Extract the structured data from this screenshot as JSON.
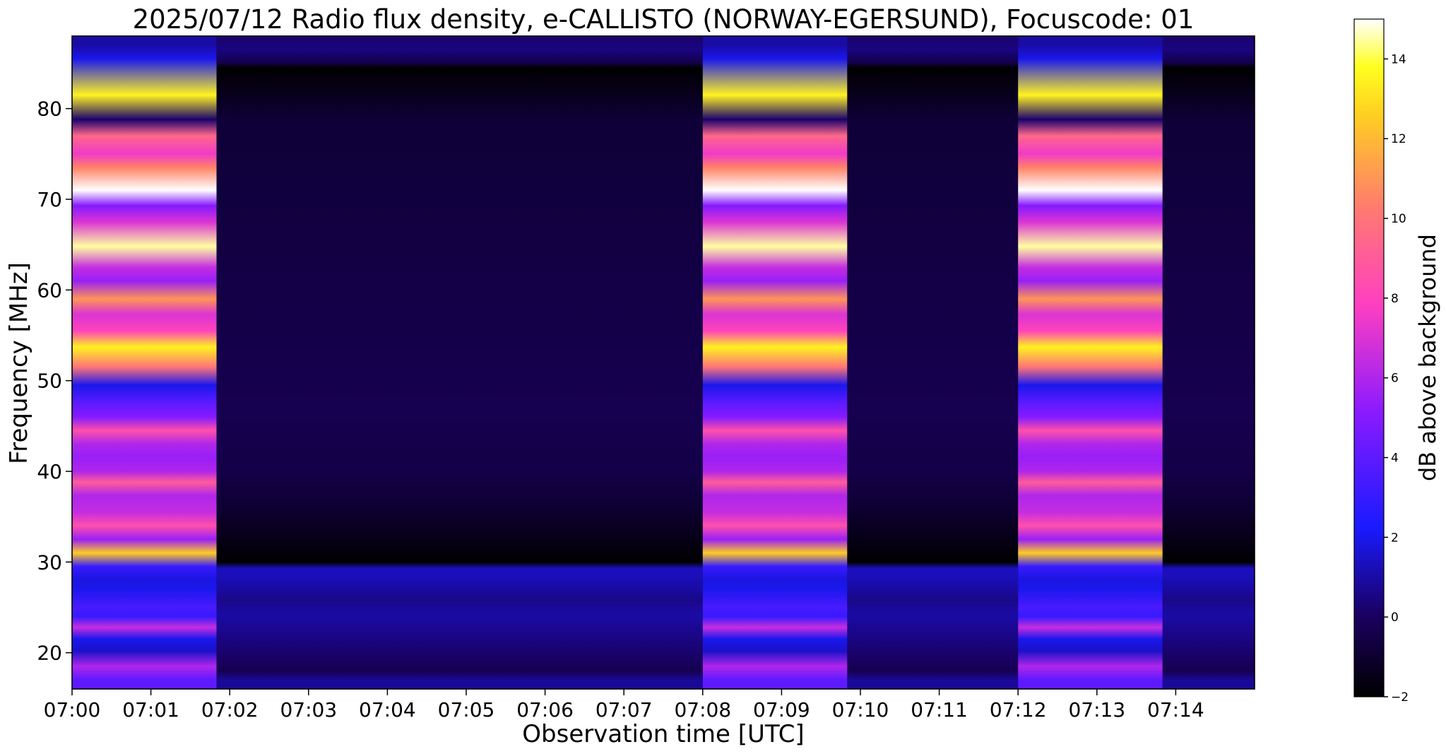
{
  "chart_data": {
    "type": "heatmap",
    "title": "2025/07/12  Radio flux density, e-CALLISTO (NORWAY-EGERSUND), Focuscode: 01",
    "xlabel": "Observation time [UTC]",
    "ylabel": "Frequency [MHz]",
    "colorbar_label": "dB above background",
    "colormap": "gnuplot2",
    "xlim": [
      "07:00",
      "07:15"
    ],
    "ylim": [
      16,
      88
    ],
    "clim": [
      -2,
      15
    ],
    "x_ticks": [
      "07:00",
      "07:01",
      "07:02",
      "07:03",
      "07:04",
      "07:05",
      "07:06",
      "07:07",
      "07:08",
      "07:09",
      "07:10",
      "07:11",
      "07:12",
      "07:13",
      "07:14"
    ],
    "y_ticks": [
      "20",
      "30",
      "40",
      "50",
      "60",
      "70",
      "80"
    ],
    "colorbar_ticks": [
      "−2",
      "0",
      "2",
      "4",
      "6",
      "8",
      "10",
      "12",
      "14"
    ],
    "calibration_segments": [
      {
        "start": "07:00:00",
        "end": "07:01:50",
        "state": "calibration"
      },
      {
        "start": "07:01:50",
        "end": "07:08:00",
        "state": "background"
      },
      {
        "start": "07:08:00",
        "end": "07:09:50",
        "state": "calibration"
      },
      {
        "start": "07:09:50",
        "end": "07:12:00",
        "state": "background"
      },
      {
        "start": "07:12:00",
        "end": "07:13:50",
        "state": "calibration"
      },
      {
        "start": "07:13:50",
        "end": "07:15:00",
        "state": "background"
      }
    ],
    "calibration_bands": [
      {
        "freq": 87.0,
        "db": 1.0
      },
      {
        "freq": 85.5,
        "db": 2.0
      },
      {
        "freq": 81.5,
        "db": 13.5
      },
      {
        "freq": 78.8,
        "db": 0.2
      },
      {
        "freq": 77.0,
        "db": 9.5
      },
      {
        "freq": 75.0,
        "db": 7.5
      },
      {
        "freq": 73.5,
        "db": 10.5
      },
      {
        "freq": 71.0,
        "db": 15.0
      },
      {
        "freq": 69.3,
        "db": 5.0
      },
      {
        "freq": 67.5,
        "db": 7.0
      },
      {
        "freq": 64.8,
        "db": 14.5
      },
      {
        "freq": 62.5,
        "db": 6.5
      },
      {
        "freq": 61.0,
        "db": 5.5
      },
      {
        "freq": 59.0,
        "db": 11.0
      },
      {
        "freq": 57.3,
        "db": 7.0
      },
      {
        "freq": 55.5,
        "db": 8.0
      },
      {
        "freq": 53.7,
        "db": 13.5
      },
      {
        "freq": 51.5,
        "db": 10.0
      },
      {
        "freq": 49.5,
        "db": 2.0
      },
      {
        "freq": 47.5,
        "db": 4.0
      },
      {
        "freq": 46.0,
        "db": 5.0
      },
      {
        "freq": 44.5,
        "db": 8.5
      },
      {
        "freq": 43.0,
        "db": 6.0
      },
      {
        "freq": 41.5,
        "db": 5.5
      },
      {
        "freq": 40.0,
        "db": 6.0
      },
      {
        "freq": 38.8,
        "db": 9.0
      },
      {
        "freq": 37.3,
        "db": 6.0
      },
      {
        "freq": 35.5,
        "db": 6.5
      },
      {
        "freq": 34.0,
        "db": 8.5
      },
      {
        "freq": 32.5,
        "db": 5.5
      },
      {
        "freq": 31.0,
        "db": 12.5
      },
      {
        "freq": 29.5,
        "db": 3.0
      },
      {
        "freq": 28.0,
        "db": 1.8
      },
      {
        "freq": 27.0,
        "db": 2.0
      },
      {
        "freq": 25.0,
        "db": 3.5
      },
      {
        "freq": 24.0,
        "db": 3.0
      },
      {
        "freq": 22.8,
        "db": 6.5
      },
      {
        "freq": 21.5,
        "db": 2.0
      },
      {
        "freq": 20.2,
        "db": 1.5
      },
      {
        "freq": 18.5,
        "db": 6.0
      },
      {
        "freq": 17.0,
        "db": 4.0
      }
    ],
    "background_bands": [
      {
        "freq": 86.5,
        "db": 0.5
      },
      {
        "freq": 78.8,
        "db": -0.8
      },
      {
        "freq": 46.5,
        "db": -0.3
      },
      {
        "freq": 39.8,
        "db": -0.5
      },
      {
        "freq": 35.5,
        "db": -1.0
      },
      {
        "freq": 28.5,
        "db": 1.3
      },
      {
        "freq": 27.2,
        "db": 1.0
      },
      {
        "freq": 25.8,
        "db": 0.6
      },
      {
        "freq": 24.2,
        "db": 1.0
      },
      {
        "freq": 21.0,
        "db": 0.4
      },
      {
        "freq": 18.0,
        "db": -0.3
      },
      {
        "freq": 17.0,
        "db": 0.8
      }
    ]
  }
}
